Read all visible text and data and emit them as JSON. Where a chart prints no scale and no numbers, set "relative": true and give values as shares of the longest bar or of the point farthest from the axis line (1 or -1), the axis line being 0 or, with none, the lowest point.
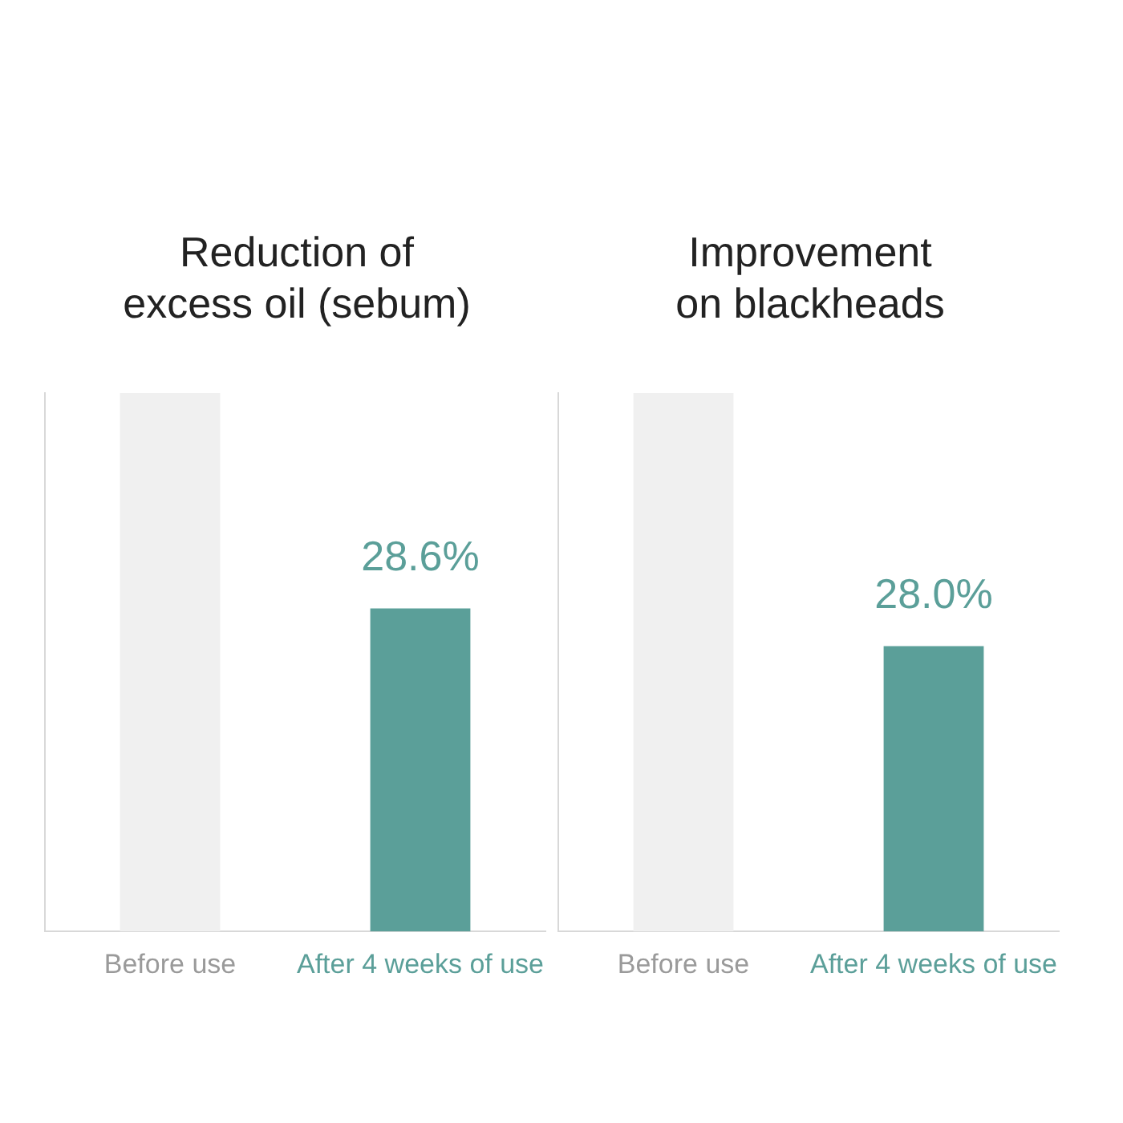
{
  "chart_data": [
    {
      "type": "bar",
      "title": "Reduction of excess oil (sebum)",
      "categories": [
        "Before use",
        "After 4 weeks of use"
      ],
      "values": [
        1,
        0.6
      ],
      "colors": [
        "#f0f0f0",
        "#5b9f99"
      ],
      "relative": true,
      "annotations": [
        "28.6%"
      ],
      "grid": false,
      "legend": false
    },
    {
      "type": "bar",
      "title": "Improvement on blackheads",
      "categories": [
        "Before use",
        "After 4 weeks of use"
      ],
      "values": [
        1,
        0.53
      ],
      "colors": [
        "#f0f0f0",
        "#5b9f99"
      ],
      "relative": true,
      "annotations": [
        "28.0%"
      ],
      "grid": false,
      "legend": false
    }
  ]
}
